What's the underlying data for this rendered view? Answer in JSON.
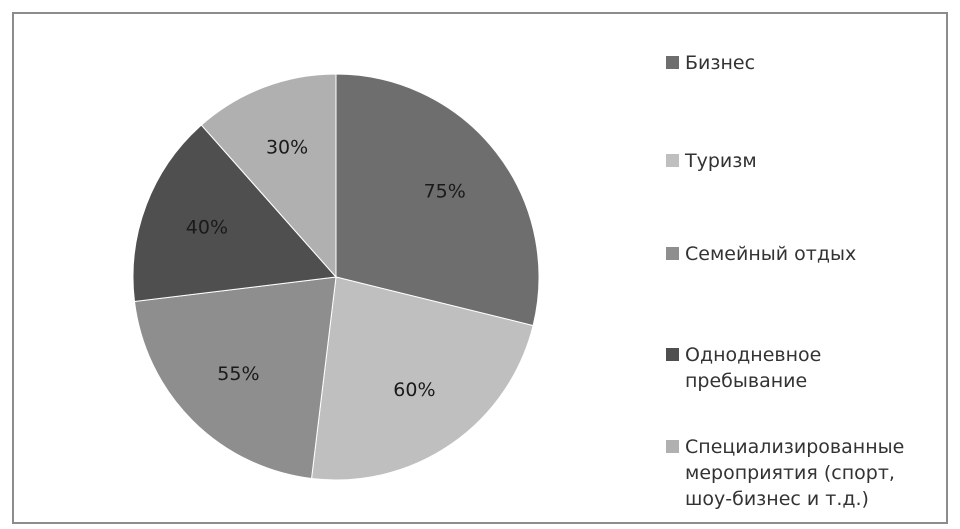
{
  "chart_data": {
    "type": "pie",
    "title": "",
    "categories": [
      "Бизнес",
      "Туризм",
      "Семейный отдых",
      "Однодневное пребывание",
      "Специализированные мероприятия (спорт, шоу-бизнес и т.д.)"
    ],
    "values": [
      75,
      60,
      55,
      40,
      30
    ],
    "data_labels": [
      "75%",
      "60%",
      "55%",
      "40%",
      "30%"
    ],
    "colors": [
      "#6e6e6e",
      "#bfbfbf",
      "#8e8e8e",
      "#4f4f4f",
      "#b0b0b0"
    ],
    "legend_position": "right",
    "start_angle": "top",
    "direction": "clockwise"
  }
}
